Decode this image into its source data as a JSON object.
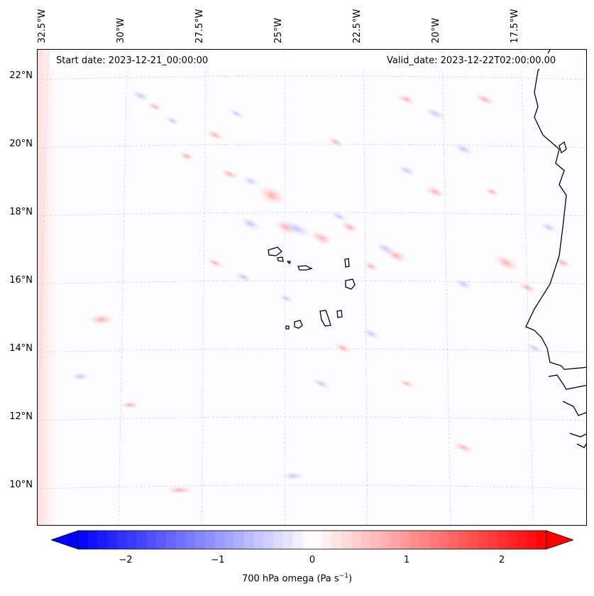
{
  "header": {
    "start_date": "Start date: 2023-12-21_00:00:00",
    "valid_date": "Valid_date: 2023-12-22T02:00:00.00"
  },
  "lon_labels": [
    "32.5°W",
    "30°W",
    "27.5°W",
    "25°W",
    "22.5°W",
    "20°W",
    "17.5°W"
  ],
  "lat_labels": [
    "22°N",
    "20°N",
    "18°N",
    "16°N",
    "14°N",
    "12°N",
    "10°N"
  ],
  "colorbar": {
    "label": "700 hPa omega (Pa s",
    "label_sup": "−1",
    "label_end": ")",
    "ticks": [
      "−2",
      "−1",
      "0",
      "1",
      "2"
    ],
    "min_color": "#0000ff",
    "mid_color": "#ffffff",
    "max_color": "#ff0000"
  }
}
